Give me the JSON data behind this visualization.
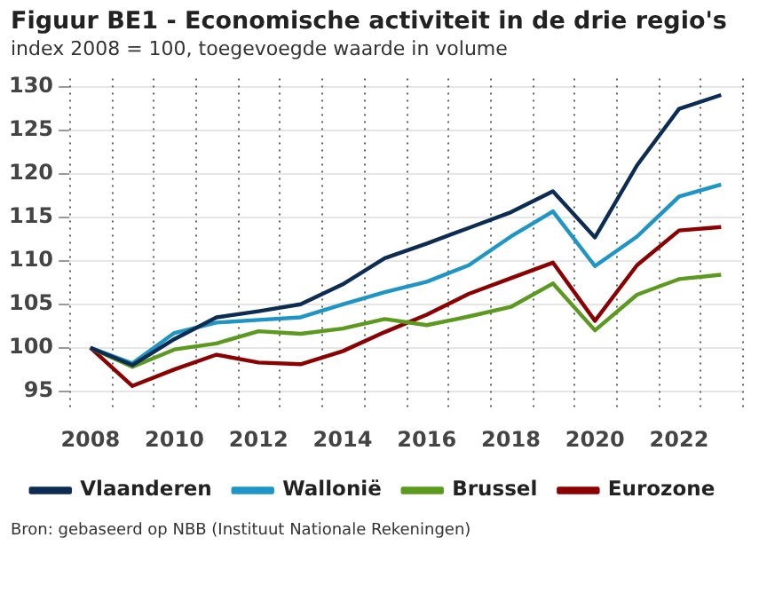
{
  "chart_data": {
    "type": "line",
    "title": "Figuur BE1 - Economische activiteit in de drie regio's",
    "subtitle": "index 2008 = 100, toegevoegde waarde in volume",
    "categories": [
      "2008",
      null,
      "2010",
      null,
      "2012",
      null,
      "2014",
      null,
      "2016",
      null,
      "2018",
      null,
      "2020",
      null,
      "2022",
      null
    ],
    "series": [
      {
        "name": "Vlaanderen",
        "color": "#0d2c54",
        "values": [
          100,
          98,
          101,
          103.5,
          104.2,
          105,
          107.3,
          110.3,
          112,
          113.8,
          115.6,
          118,
          112.7,
          121,
          127.5,
          129.1
        ]
      },
      {
        "name": "Wallonië",
        "color": "#1f95c6",
        "values": [
          100,
          98.2,
          101.7,
          102.9,
          103.2,
          103.5,
          105,
          106.4,
          107.6,
          109.5,
          112.8,
          115.7,
          109.4,
          112.8,
          117.4,
          118.8
        ]
      },
      {
        "name": "Brussel",
        "color": "#5b9a1e",
        "values": [
          100,
          97.8,
          99.8,
          100.5,
          101.9,
          101.6,
          102.2,
          103.3,
          102.6,
          103.6,
          104.7,
          107.4,
          102,
          106.1,
          107.9,
          108.4
        ]
      },
      {
        "name": "Eurozone",
        "color": "#8b0000",
        "values": [
          100,
          95.6,
          97.5,
          99.2,
          98.3,
          98.1,
          99.6,
          101.8,
          103.8,
          106.2,
          108,
          109.8,
          103.1,
          109.5,
          113.5,
          113.9
        ]
      }
    ],
    "ylim": [
      93,
      131
    ],
    "yticks": [
      95,
      100,
      105,
      110,
      115,
      120,
      125,
      130
    ],
    "grid": true,
    "legend": "bottom",
    "marker": "none",
    "line_style": "solid",
    "annotations": [
      "Bron: gebaseerd op NBB (Instituut Nationale Rekeningen)"
    ]
  }
}
